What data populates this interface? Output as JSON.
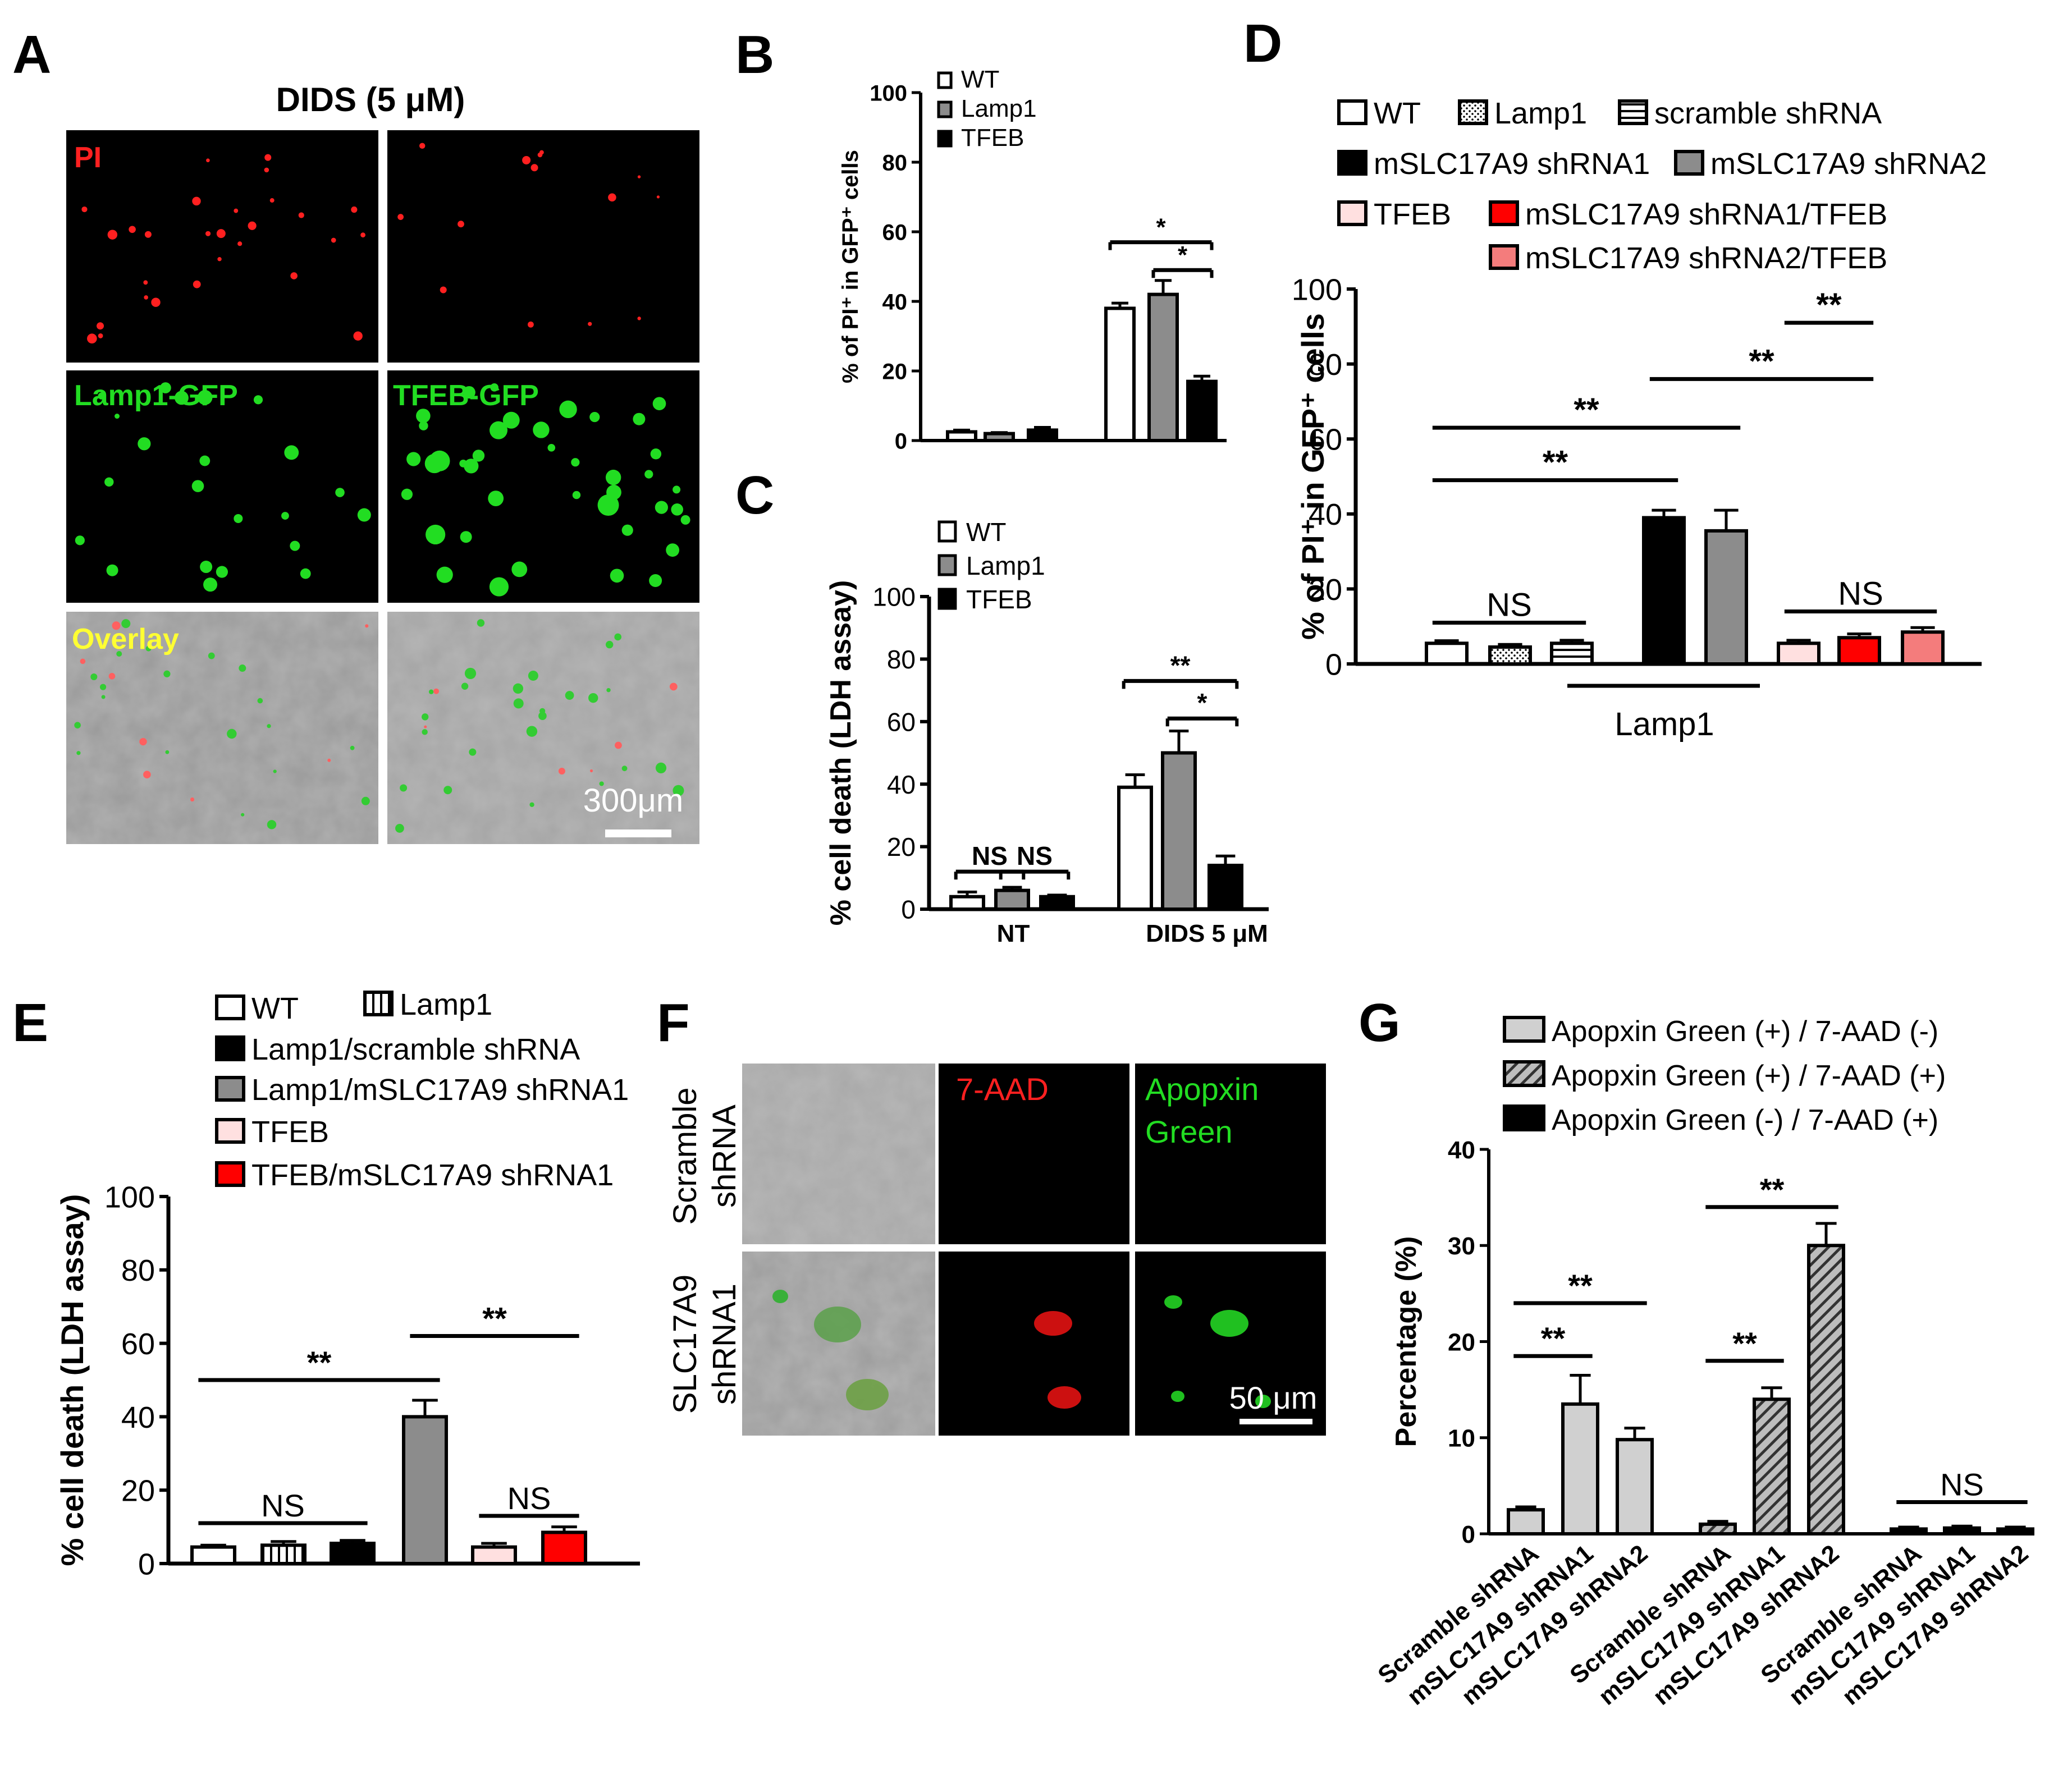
{
  "panel_letters": [
    "A",
    "B",
    "C",
    "D",
    "E",
    "F",
    "G"
  ],
  "panel_a": {
    "title": "DIDS (5 μM)",
    "labels": {
      "pi": "PI",
      "lamp1_gfp": "Lamp1-GFP",
      "tfeb_gfp": "TFEB-GFP",
      "overlay": "Overlay"
    },
    "scale_bar": "300μm"
  },
  "panel_f": {
    "col_labels": {
      "aad": "7-AAD",
      "apopxin_1": "Apopxin",
      "apopxin_2": "Green"
    },
    "row_labels": {
      "scr_1": "Scramble",
      "scr_2": "shRNA",
      "sh_1": "SLC17A9",
      "sh_2": "shRNA1"
    },
    "scale_bar": "50 μm"
  },
  "colors": {
    "white": "#ffffff",
    "gray": "#8c8c8c",
    "black": "#000000",
    "pink": "#ffe0e0",
    "red": "#ff0000",
    "salmon": "#f47c7c",
    "lightgray": "#d0d0d0"
  },
  "chart_data": [
    {
      "id": "B",
      "type": "bar",
      "ylabel": "% of PI⁺ in GFP⁺ cells",
      "ylim": [
        0,
        100
      ],
      "yticks": [
        0,
        20,
        40,
        60,
        80,
        100
      ],
      "legend": [
        {
          "label": "WT",
          "fill": "white"
        },
        {
          "label": "Lamp1",
          "fill": "gray"
        },
        {
          "label": "TFEB",
          "fill": "black"
        }
      ],
      "bars": [
        {
          "group": 0,
          "fill": "white",
          "value": 2.5,
          "err": 0.5
        },
        {
          "group": 0,
          "fill": "gray",
          "value": 2,
          "err": 0.3
        },
        {
          "group": 0,
          "fill": "black",
          "value": 3,
          "err": 0.8
        },
        {
          "group": 1,
          "fill": "white",
          "value": 38,
          "err": 1.5
        },
        {
          "group": 1,
          "fill": "gray",
          "value": 42,
          "err": 4
        },
        {
          "group": 1,
          "fill": "black",
          "value": 17,
          "err": 1.5
        }
      ],
      "annotations": [
        {
          "text": "*",
          "from": 3,
          "to": 5,
          "y": 57
        },
        {
          "text": "*",
          "from": 4,
          "to": 5,
          "y": 49
        }
      ]
    },
    {
      "id": "C",
      "type": "bar",
      "ylabel": "% cell death (LDH assay)",
      "ylim": [
        0,
        100
      ],
      "yticks": [
        0,
        20,
        40,
        60,
        80,
        100
      ],
      "categories": [
        "NT",
        "DIDS 5 μM"
      ],
      "legend": [
        {
          "label": "WT",
          "fill": "white"
        },
        {
          "label": "Lamp1",
          "fill": "gray"
        },
        {
          "label": "TFEB",
          "fill": "black"
        }
      ],
      "bars": [
        {
          "group": 0,
          "fill": "white",
          "value": 4,
          "err": 1.5
        },
        {
          "group": 0,
          "fill": "gray",
          "value": 6,
          "err": 1
        },
        {
          "group": 0,
          "fill": "black",
          "value": 4,
          "err": 0.5
        },
        {
          "group": 1,
          "fill": "white",
          "value": 39,
          "err": 4
        },
        {
          "group": 1,
          "fill": "gray",
          "value": 50,
          "err": 7
        },
        {
          "group": 1,
          "fill": "black",
          "value": 14,
          "err": 3
        }
      ],
      "annotations": [
        {
          "text": "NS",
          "from": 0,
          "to": 1,
          "y": 12
        },
        {
          "text": "NS",
          "from": 1,
          "to": 2,
          "y": 12
        },
        {
          "text": "**",
          "from": 3,
          "to": 5,
          "y": 73
        },
        {
          "text": "*",
          "from": 4,
          "to": 5,
          "y": 61
        }
      ]
    },
    {
      "id": "D",
      "type": "bar",
      "ylabel": "% of PI⁺ in GFP⁺ cells",
      "ylim": [
        0,
        100
      ],
      "yticks": [
        0,
        20,
        40,
        60,
        80,
        100
      ],
      "group_label": "Lamp1",
      "legend": [
        {
          "label": "WT",
          "fill": "white"
        },
        {
          "label": "Lamp1",
          "fill": "dots"
        },
        {
          "label": "scramble shRNA",
          "fill": "hlines"
        },
        {
          "label": "mSLC17A9 shRNA1",
          "fill": "black"
        },
        {
          "label": "mSLC17A9 shRNA2",
          "fill": "gray"
        },
        {
          "label": "TFEB",
          "fill": "pink"
        },
        {
          "label": "mSLC17A9 shRNA1/TFEB",
          "fill": "red"
        },
        {
          "label": "mSLC17A9 shRNA2/TFEB",
          "fill": "salmon"
        }
      ],
      "bars": [
        {
          "fill": "white",
          "value": 5.5,
          "err": 0.7
        },
        {
          "fill": "dots",
          "value": 4.5,
          "err": 0.7
        },
        {
          "fill": "hlines",
          "value": 5.5,
          "err": 0.8
        },
        {
          "fill": "black",
          "value": 39,
          "err": 2
        },
        {
          "fill": "gray",
          "value": 35.5,
          "err": 5.5
        },
        {
          "fill": "pink",
          "value": 5.5,
          "err": 0.8
        },
        {
          "fill": "red",
          "value": 7,
          "err": 1
        },
        {
          "fill": "salmon",
          "value": 8.5,
          "err": 1.2
        }
      ],
      "annotations": [
        {
          "text": "NS",
          "from": 0,
          "to": 2,
          "y": 11
        },
        {
          "text": "**",
          "from": 0,
          "to": 3,
          "y": 49
        },
        {
          "text": "**",
          "from": 0,
          "to": 4,
          "y": 63
        },
        {
          "text": "**",
          "from": 3,
          "to": 6,
          "y": 76
        },
        {
          "text": "**",
          "from": 5,
          "to": 6,
          "y": 91
        },
        {
          "text": "NS",
          "from": 5,
          "to": 7,
          "y": 14
        }
      ]
    },
    {
      "id": "E",
      "type": "bar",
      "ylabel": "% cell death (LDH assay)",
      "ylim": [
        0,
        100
      ],
      "yticks": [
        0,
        20,
        40,
        60,
        80,
        100
      ],
      "legend": [
        {
          "label": "WT",
          "fill": "white"
        },
        {
          "label": "Lamp1",
          "fill": "vlines"
        },
        {
          "label": "Lamp1/scramble shRNA",
          "fill": "black"
        },
        {
          "label": "Lamp1/mSLC17A9 shRNA1",
          "fill": "gray"
        },
        {
          "label": "TFEB",
          "fill": "pink"
        },
        {
          "label": "TFEB/mSLC17A9 shRNA1",
          "fill": "red"
        }
      ],
      "bars": [
        {
          "fill": "white",
          "value": 4.5,
          "err": 0.5
        },
        {
          "fill": "vlines",
          "value": 5,
          "err": 1
        },
        {
          "fill": "black",
          "value": 5.5,
          "err": 0.8
        },
        {
          "fill": "gray",
          "value": 40,
          "err": 4.5
        },
        {
          "fill": "pink",
          "value": 4.5,
          "err": 1
        },
        {
          "fill": "red",
          "value": 8.5,
          "err": 1.5
        }
      ],
      "annotations": [
        {
          "text": "NS",
          "from": 0,
          "to": 2,
          "y": 11
        },
        {
          "text": "**",
          "from": 0,
          "to": 3,
          "y": 50
        },
        {
          "text": "**",
          "from": 3,
          "to": 5,
          "y": 62
        },
        {
          "text": "NS",
          "from": 4,
          "to": 5,
          "y": 13
        }
      ]
    },
    {
      "id": "G",
      "type": "bar",
      "ylabel": "Percentage  (%)",
      "ylim": [
        0,
        40
      ],
      "yticks": [
        0,
        10,
        20,
        30,
        40
      ],
      "categories": [
        "Scramble shRNA",
        "mSLC17A9 shRNA1",
        "mSLC17A9 shRNA2",
        "Scramble shRNA",
        "mSLC17A9 shRNA1",
        "mSLC17A9 shRNA2",
        "Scramble shRNA",
        "mSLC17A9 shRNA1",
        "mSLC17A9 shRNA2"
      ],
      "legend": [
        {
          "label": "Apopxin Green (+) / 7-AAD (-)",
          "fill": "lightgray"
        },
        {
          "label": "Apopxin Green (+) / 7-AAD (+)",
          "fill": "diag"
        },
        {
          "label": "Apopxin Green (-) / 7-AAD (+)",
          "fill": "black"
        }
      ],
      "bars": [
        {
          "fill": "lightgray",
          "value": 2.5,
          "err": 0.3
        },
        {
          "fill": "lightgray",
          "value": 13.5,
          "err": 3
        },
        {
          "fill": "lightgray",
          "value": 9.8,
          "err": 1.2
        },
        {
          "fill": "diag",
          "value": 1,
          "err": 0.3
        },
        {
          "fill": "diag",
          "value": 14,
          "err": 1.2
        },
        {
          "fill": "diag",
          "value": 30,
          "err": 2.3
        },
        {
          "fill": "black",
          "value": 0.5,
          "err": 0.2
        },
        {
          "fill": "black",
          "value": 0.6,
          "err": 0.2
        },
        {
          "fill": "black",
          "value": 0.5,
          "err": 0.2
        }
      ],
      "annotations": [
        {
          "text": "**",
          "from": 0,
          "to": 1,
          "y": 18.5
        },
        {
          "text": "**",
          "from": 0,
          "to": 2,
          "y": 24
        },
        {
          "text": "**",
          "from": 3,
          "to": 4,
          "y": 18
        },
        {
          "text": "**",
          "from": 3,
          "to": 5,
          "y": 34
        },
        {
          "text": "NS",
          "from": 6,
          "to": 8,
          "y": 3.3
        }
      ]
    }
  ]
}
